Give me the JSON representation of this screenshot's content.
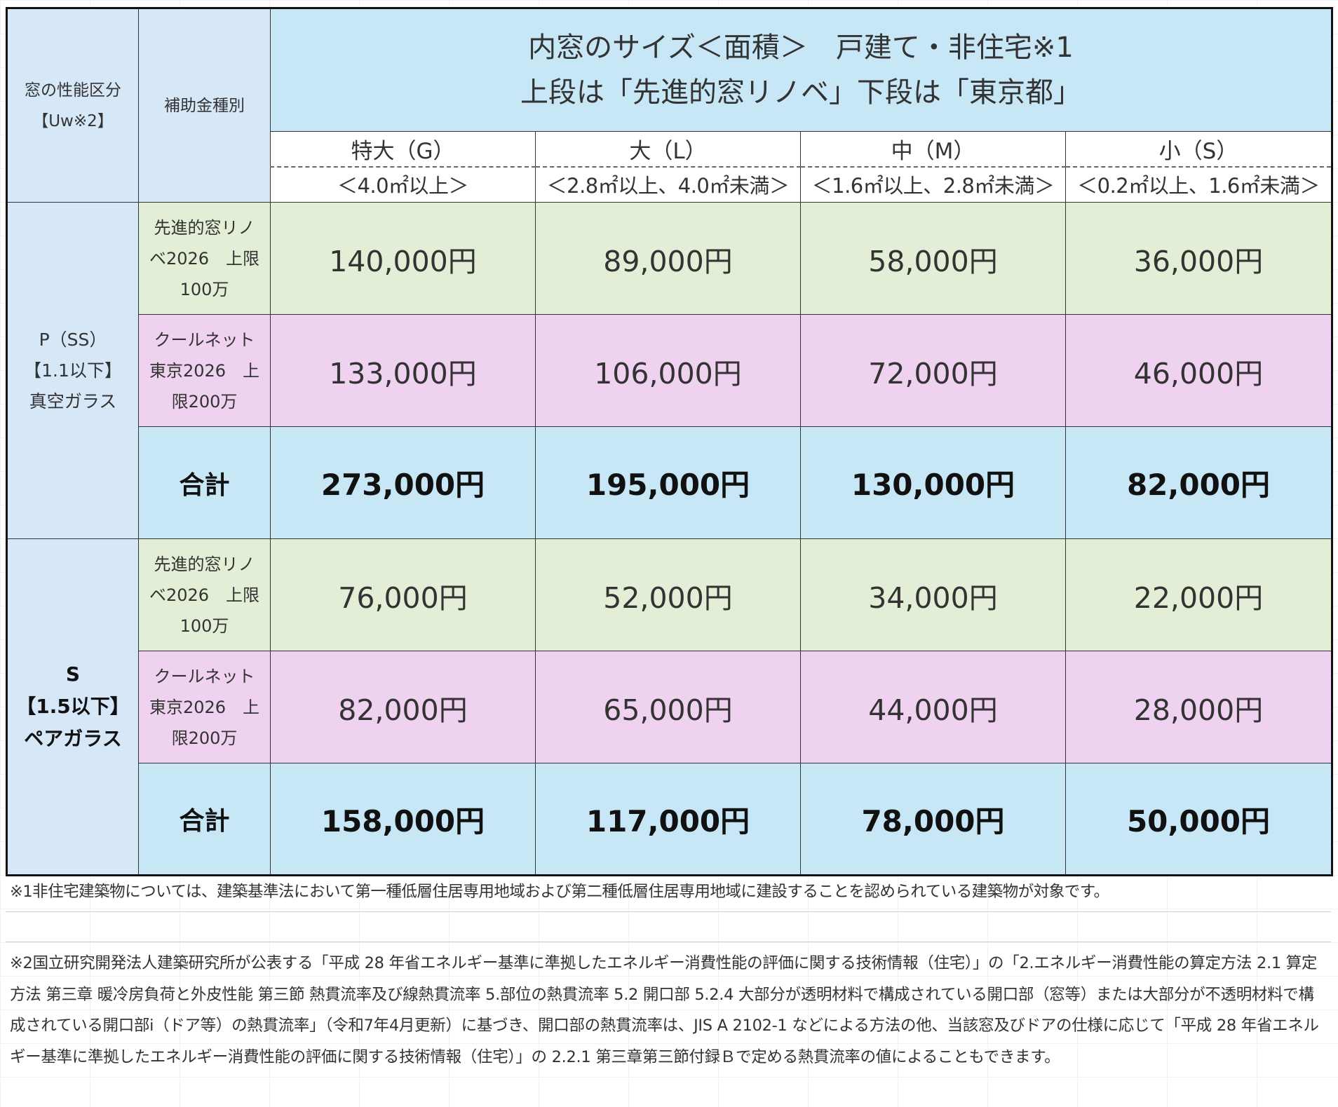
{
  "header": {
    "left1_line1": "窓の性能区分",
    "left1_line2": "【Uw※2】",
    "left2": "補助金種別",
    "title_line1": "内窓のサイズ＜面積＞　戸建て・非住宅※1",
    "title_line2": "上段は「先進的窓リノベ」下段は「東京都」"
  },
  "sizes": [
    {
      "name": "特大（G）",
      "range": "＜4.0㎡以上＞"
    },
    {
      "name": "大（L）",
      "range": "＜2.8㎡以上、4.0㎡未満＞"
    },
    {
      "name": "中（M）",
      "range": "＜1.6㎡以上、2.8㎡未満＞"
    },
    {
      "name": "小（S）",
      "range": "＜0.2㎡以上、1.6㎡未満＞"
    }
  ],
  "groups": [
    {
      "grade_lines": [
        "P（SS）",
        "【1.1以下】",
        "真空ガラス"
      ],
      "rows": [
        {
          "label_lines": [
            "先進的窓リノ",
            "ベ2026　上限",
            "100万"
          ],
          "values": [
            "140,000円",
            "89,000円",
            "58,000円",
            "36,000円"
          ]
        },
        {
          "label_lines": [
            "クールネット",
            "東京2026　上",
            "限200万"
          ],
          "values": [
            "133,000円",
            "106,000円",
            "72,000円",
            "46,000円"
          ]
        }
      ],
      "total_label": "合計",
      "totals": [
        "273,000円",
        "195,000円",
        "130,000円",
        "82,000円"
      ]
    },
    {
      "grade_lines": [
        "S",
        "【1.5以下】",
        "ペアガラス"
      ],
      "rows": [
        {
          "label_lines": [
            "先進的窓リノ",
            "ベ2026　上限",
            "100万"
          ],
          "values": [
            "76,000円",
            "52,000円",
            "34,000円",
            "22,000円"
          ]
        },
        {
          "label_lines": [
            "クールネット",
            "東京2026　上",
            "限200万"
          ],
          "values": [
            "82,000円",
            "65,000円",
            "44,000円",
            "28,000円"
          ]
        }
      ],
      "total_label": "合計",
      "totals": [
        "158,000円",
        "117,000円",
        "78,000円",
        "50,000円"
      ]
    }
  ],
  "notes": {
    "note1": "※1非住宅建築物については、建築基準法において第一種低層住居専用地域および第二種低層住居専用地域に建設することを認められている建築物が対象です。",
    "note2": "※2国立研究開発法人建築研究所が公表する「平成 28 年省エネルギー基準に準拠したエネルギー消費性能の評価に関する技術情報（住宅）」の「2.エネルギー消費性能の算定方法 2.1 算定方法 第三章 暖冷房負荷と外皮性能 第三節 熱貫流率及び線熱貫流率 5.部位の熱貫流率 5.2 開口部 5.2.4 大部分が透明材料で構成されている開口部（窓等）または大部分が不透明材料で構成されている開口部i（ドア等）の熱貫流率」（令和7年4月更新）に基づき、開口部の熱貫流率は、JIS A 2102-1 などによる方法の他、当該窓及びドアの仕様に応じて「平成 28 年省エネルギー基準に準拠したエネルギー消費性能の評価に関する技術情報（住宅）」の 2.2.1 第三章第三節付録Ｂで定める熱貫流率の値によることもできます。"
  }
}
